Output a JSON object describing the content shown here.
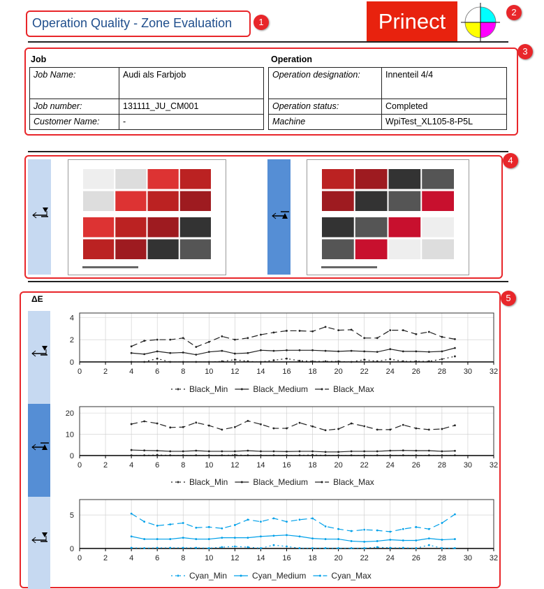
{
  "header": {
    "title": "Operation Quality - Zone Evaluation",
    "logo_text": "Prinect"
  },
  "badges": [
    "1",
    "2",
    "3",
    "4",
    "5"
  ],
  "job": {
    "heading": "Job",
    "rows": [
      {
        "label": "Job Name:",
        "value": "Audi als Farbjob"
      },
      {
        "label": "Job number:",
        "value": "131111_JU_CM001"
      },
      {
        "label": "Customer Name:",
        "value": "-"
      }
    ]
  },
  "operation": {
    "heading": "Operation",
    "rows": [
      {
        "label": "Operation designation:",
        "value": "Innenteil  4/4"
      },
      {
        "label": "Operation status:",
        "value": "Completed"
      },
      {
        "label": "Machine",
        "value": "WpiTest_XL105-8-P5L"
      }
    ]
  },
  "sides": [
    {
      "name": "front",
      "icon": "sheet-top-side-icon"
    },
    {
      "name": "back",
      "icon": "sheet-bottom-side-icon"
    }
  ],
  "colors": {
    "accent": "#1f4e8c",
    "highlight": "#e8262a",
    "side_light": "#c6d9f1",
    "side_dark": "#558ed5",
    "black": "#222222",
    "cyan": "#00a0e9"
  },
  "delta_label": "ΔE",
  "chart_data": [
    {
      "type": "line",
      "side": "front",
      "xlim": [
        0,
        32
      ],
      "ylim": [
        0,
        4.4
      ],
      "xticks": [
        0,
        2,
        4,
        6,
        8,
        10,
        12,
        14,
        16,
        18,
        20,
        22,
        24,
        26,
        28,
        30,
        32
      ],
      "yticks": [
        0,
        2,
        4
      ],
      "grid": true,
      "legend": "bottom",
      "color": "#222222",
      "x": [
        4,
        5,
        6,
        7,
        8,
        9,
        10,
        11,
        12,
        13,
        14,
        15,
        16,
        17,
        18,
        19,
        20,
        21,
        22,
        23,
        24,
        25,
        26,
        27,
        28,
        29
      ],
      "series": [
        {
          "name": "Black_Min",
          "style": "dotted",
          "values": [
            0,
            0,
            0.3,
            0,
            0,
            0,
            0,
            0.05,
            0.2,
            0.05,
            0,
            0.15,
            0.3,
            0.1,
            0.05,
            0.05,
            0.05,
            0,
            0.2,
            0.05,
            0.25,
            0.05,
            0.05,
            0.05,
            0.25,
            0.5
          ]
        },
        {
          "name": "Black_Medium",
          "style": "solid",
          "values": [
            0.8,
            0.7,
            0.95,
            0.8,
            0.85,
            0.65,
            0.9,
            1.0,
            0.75,
            0.8,
            1.05,
            1.0,
            1.05,
            1.05,
            1.05,
            1.0,
            0.95,
            1.0,
            0.95,
            0.9,
            1.15,
            0.95,
            0.95,
            0.9,
            0.95,
            1.25
          ]
        },
        {
          "name": "Black_Max",
          "style": "dashed",
          "values": [
            1.4,
            1.9,
            2.0,
            2.0,
            2.15,
            1.35,
            1.8,
            2.3,
            2.0,
            2.15,
            2.45,
            2.65,
            2.8,
            2.8,
            2.75,
            3.15,
            2.85,
            2.9,
            2.15,
            2.15,
            2.85,
            2.85,
            2.5,
            2.7,
            2.25,
            2.05
          ]
        }
      ]
    },
    {
      "type": "line",
      "side": "back",
      "xlim": [
        0,
        32
      ],
      "ylim": [
        0,
        23
      ],
      "xticks": [
        0,
        2,
        4,
        6,
        8,
        10,
        12,
        14,
        16,
        18,
        20,
        22,
        24,
        26,
        28,
        30,
        32
      ],
      "yticks": [
        0,
        10,
        20
      ],
      "grid": true,
      "legend": "bottom",
      "color": "#222222",
      "x": [
        4,
        5,
        6,
        7,
        8,
        9,
        10,
        11,
        12,
        13,
        14,
        15,
        16,
        17,
        18,
        19,
        20,
        21,
        22,
        23,
        24,
        25,
        26,
        27,
        28,
        29
      ],
      "series": [
        {
          "name": "Black_Min",
          "style": "dotted",
          "values": [
            0.1,
            0.1,
            0.3,
            0.1,
            0.1,
            0.1,
            0.1,
            0.1,
            0.3,
            0.1,
            0.1,
            0.1,
            0.1,
            0.1,
            0.3,
            0.1,
            0.1,
            0.1,
            0.1,
            0.1,
            0.1,
            0.1,
            0.1,
            0.1,
            0.1,
            0.1
          ]
        },
        {
          "name": "Black_Medium",
          "style": "solid",
          "values": [
            2.6,
            2.4,
            2.3,
            2.0,
            2.0,
            2.3,
            2.0,
            2.0,
            2.0,
            2.3,
            2.0,
            2.0,
            1.9,
            2.0,
            2.0,
            1.7,
            1.7,
            2.0,
            2.0,
            2.0,
            2.3,
            2.4,
            2.3,
            2.3,
            2.0,
            2.2
          ]
        },
        {
          "name": "Black_Max",
          "style": "dashed",
          "values": [
            14.8,
            16.1,
            15.1,
            13.2,
            13.4,
            15.5,
            14.1,
            12.2,
            13.4,
            16.3,
            14.7,
            12.8,
            12.8,
            15.4,
            13.7,
            11.9,
            12.5,
            15.1,
            13.8,
            12.2,
            12.2,
            14.4,
            12.8,
            12.2,
            12.5,
            14.2
          ]
        }
      ]
    },
    {
      "type": "line",
      "side": "front",
      "xlim": [
        0,
        32
      ],
      "ylim": [
        0,
        7.3
      ],
      "xticks": [
        0,
        2,
        4,
        6,
        8,
        10,
        12,
        14,
        16,
        18,
        20,
        22,
        24,
        26,
        28,
        30,
        32
      ],
      "yticks": [
        0,
        5
      ],
      "grid": true,
      "legend": "bottom",
      "color": "#00a0e9",
      "x": [
        4,
        5,
        6,
        7,
        8,
        9,
        10,
        11,
        12,
        13,
        14,
        15,
        16,
        17,
        18,
        19,
        20,
        21,
        22,
        23,
        24,
        25,
        26,
        27,
        28,
        29
      ],
      "series": [
        {
          "name": "Cyan_Min",
          "style": "dotted",
          "values": [
            0.1,
            0.05,
            0.1,
            0.1,
            0.1,
            0.1,
            0.05,
            0.2,
            0.3,
            0.2,
            0.05,
            0.5,
            0.3,
            0.05,
            0.05,
            0.05,
            0.05,
            0.05,
            0.05,
            0.2,
            0.1,
            0.1,
            0.05,
            0.5,
            0.05,
            0.05
          ]
        },
        {
          "name": "Cyan_Medium",
          "style": "solid",
          "values": [
            1.8,
            1.4,
            1.4,
            1.4,
            1.6,
            1.4,
            1.4,
            1.6,
            1.6,
            1.6,
            1.8,
            1.9,
            2.0,
            1.8,
            1.5,
            1.4,
            1.4,
            1.1,
            1.0,
            1.1,
            1.3,
            1.2,
            1.2,
            1.5,
            1.3,
            1.4
          ]
        },
        {
          "name": "Cyan_Max",
          "style": "dashed",
          "values": [
            5.2,
            4.0,
            3.4,
            3.6,
            3.8,
            3.1,
            3.2,
            3.0,
            3.5,
            4.3,
            4.0,
            4.5,
            4.0,
            4.3,
            4.5,
            3.3,
            2.9,
            2.6,
            2.8,
            2.7,
            2.5,
            2.9,
            3.2,
            2.9,
            3.8,
            5.1
          ]
        }
      ]
    }
  ]
}
